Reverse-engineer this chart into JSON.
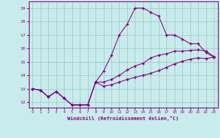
{
  "xlabel": "Windchill (Refroidissement éolien,°C)",
  "background_color": "#c8ecec",
  "line_color": "#800080",
  "grid_color": "#a0c8c8",
  "xlim": [
    -0.5,
    23.5
  ],
  "ylim": [
    11.6,
    19.5
  ],
  "xticks": [
    0,
    1,
    2,
    3,
    4,
    5,
    6,
    7,
    8,
    9,
    10,
    11,
    12,
    13,
    14,
    15,
    16,
    17,
    18,
    19,
    20,
    21,
    22,
    23
  ],
  "yticks": [
    12,
    13,
    14,
    15,
    16,
    17,
    18,
    19
  ],
  "series1_x": [
    0,
    1,
    2,
    3,
    4,
    5,
    6,
    7,
    8,
    9,
    10,
    11,
    12,
    13,
    14,
    15,
    16,
    17,
    18,
    19,
    20,
    21,
    22,
    23
  ],
  "series1_y": [
    13.0,
    12.9,
    12.4,
    12.8,
    12.3,
    11.8,
    11.8,
    11.8,
    13.5,
    13.2,
    13.3,
    13.5,
    13.7,
    13.85,
    14.0,
    14.15,
    14.35,
    14.6,
    14.85,
    15.05,
    15.2,
    15.3,
    15.25,
    15.35
  ],
  "series2_x": [
    0,
    1,
    2,
    3,
    4,
    5,
    6,
    7,
    8,
    9,
    10,
    11,
    12,
    13,
    14,
    15,
    16,
    17,
    18,
    19,
    20,
    21,
    22,
    23
  ],
  "series2_y": [
    13.0,
    12.9,
    12.4,
    12.8,
    12.3,
    11.8,
    11.8,
    11.8,
    13.5,
    13.5,
    13.7,
    14.0,
    14.4,
    14.7,
    14.9,
    15.3,
    15.5,
    15.6,
    15.8,
    15.8,
    15.85,
    15.9,
    15.8,
    15.4
  ],
  "series3_x": [
    0,
    1,
    2,
    3,
    4,
    5,
    6,
    7,
    8,
    9,
    10,
    11,
    12,
    13,
    14,
    15,
    16,
    17,
    18,
    19,
    20,
    21,
    22,
    23
  ],
  "series3_y": [
    13.0,
    12.9,
    12.4,
    12.8,
    12.3,
    11.8,
    11.8,
    11.8,
    13.5,
    14.3,
    15.5,
    17.0,
    17.8,
    19.0,
    19.0,
    18.7,
    18.4,
    17.0,
    17.0,
    16.7,
    16.35,
    16.35,
    15.7,
    15.35
  ],
  "marker": "+",
  "marker_size": 3,
  "linewidth": 0.8
}
